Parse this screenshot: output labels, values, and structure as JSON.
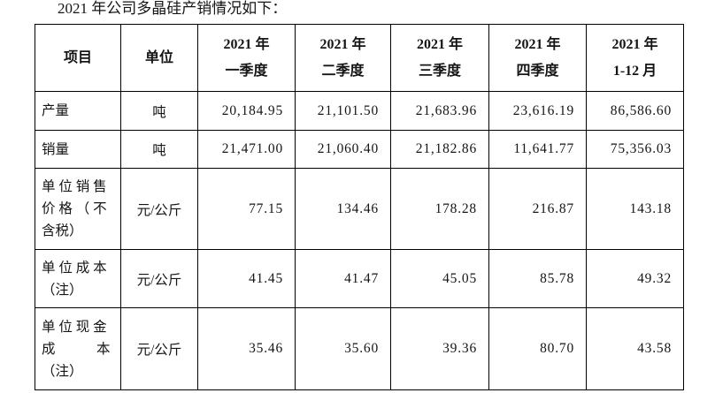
{
  "title": "2021 年公司多晶硅产销情况如下：",
  "table": {
    "col_headers": [
      "项目",
      "单位",
      "2021 年\n一季度",
      "2021 年\n二季度",
      "2021 年\n三季度",
      "2021 年\n四季度",
      "2021 年\n1-12 月"
    ],
    "rows": [
      {
        "item": "产量",
        "unit": "吨",
        "values": [
          "20,184.95",
          "21,101.50",
          "21,683.96",
          "23,616.19",
          "86,586.60"
        ]
      },
      {
        "item": "销量",
        "unit": "吨",
        "values": [
          "21,471.00",
          "21,060.40",
          "21,182.86",
          "11,641.77",
          "75,356.03"
        ]
      },
      {
        "item": "单 位 销 售\n价 格 （ 不\n含税）",
        "unit": "元/公斤",
        "values": [
          "77.15",
          "134.46",
          "178.28",
          "216.87",
          "143.18"
        ]
      },
      {
        "item": "单 位 成 本\n（注）",
        "unit": "元/公斤",
        "values": [
          "41.45",
          "41.47",
          "45.05",
          "85.78",
          "49.32"
        ]
      },
      {
        "item": "单 位 现 金\n成　　　本\n（注）",
        "unit": "元/公斤",
        "values": [
          "35.46",
          "35.60",
          "39.36",
          "80.70",
          "43.58"
        ]
      }
    ]
  }
}
